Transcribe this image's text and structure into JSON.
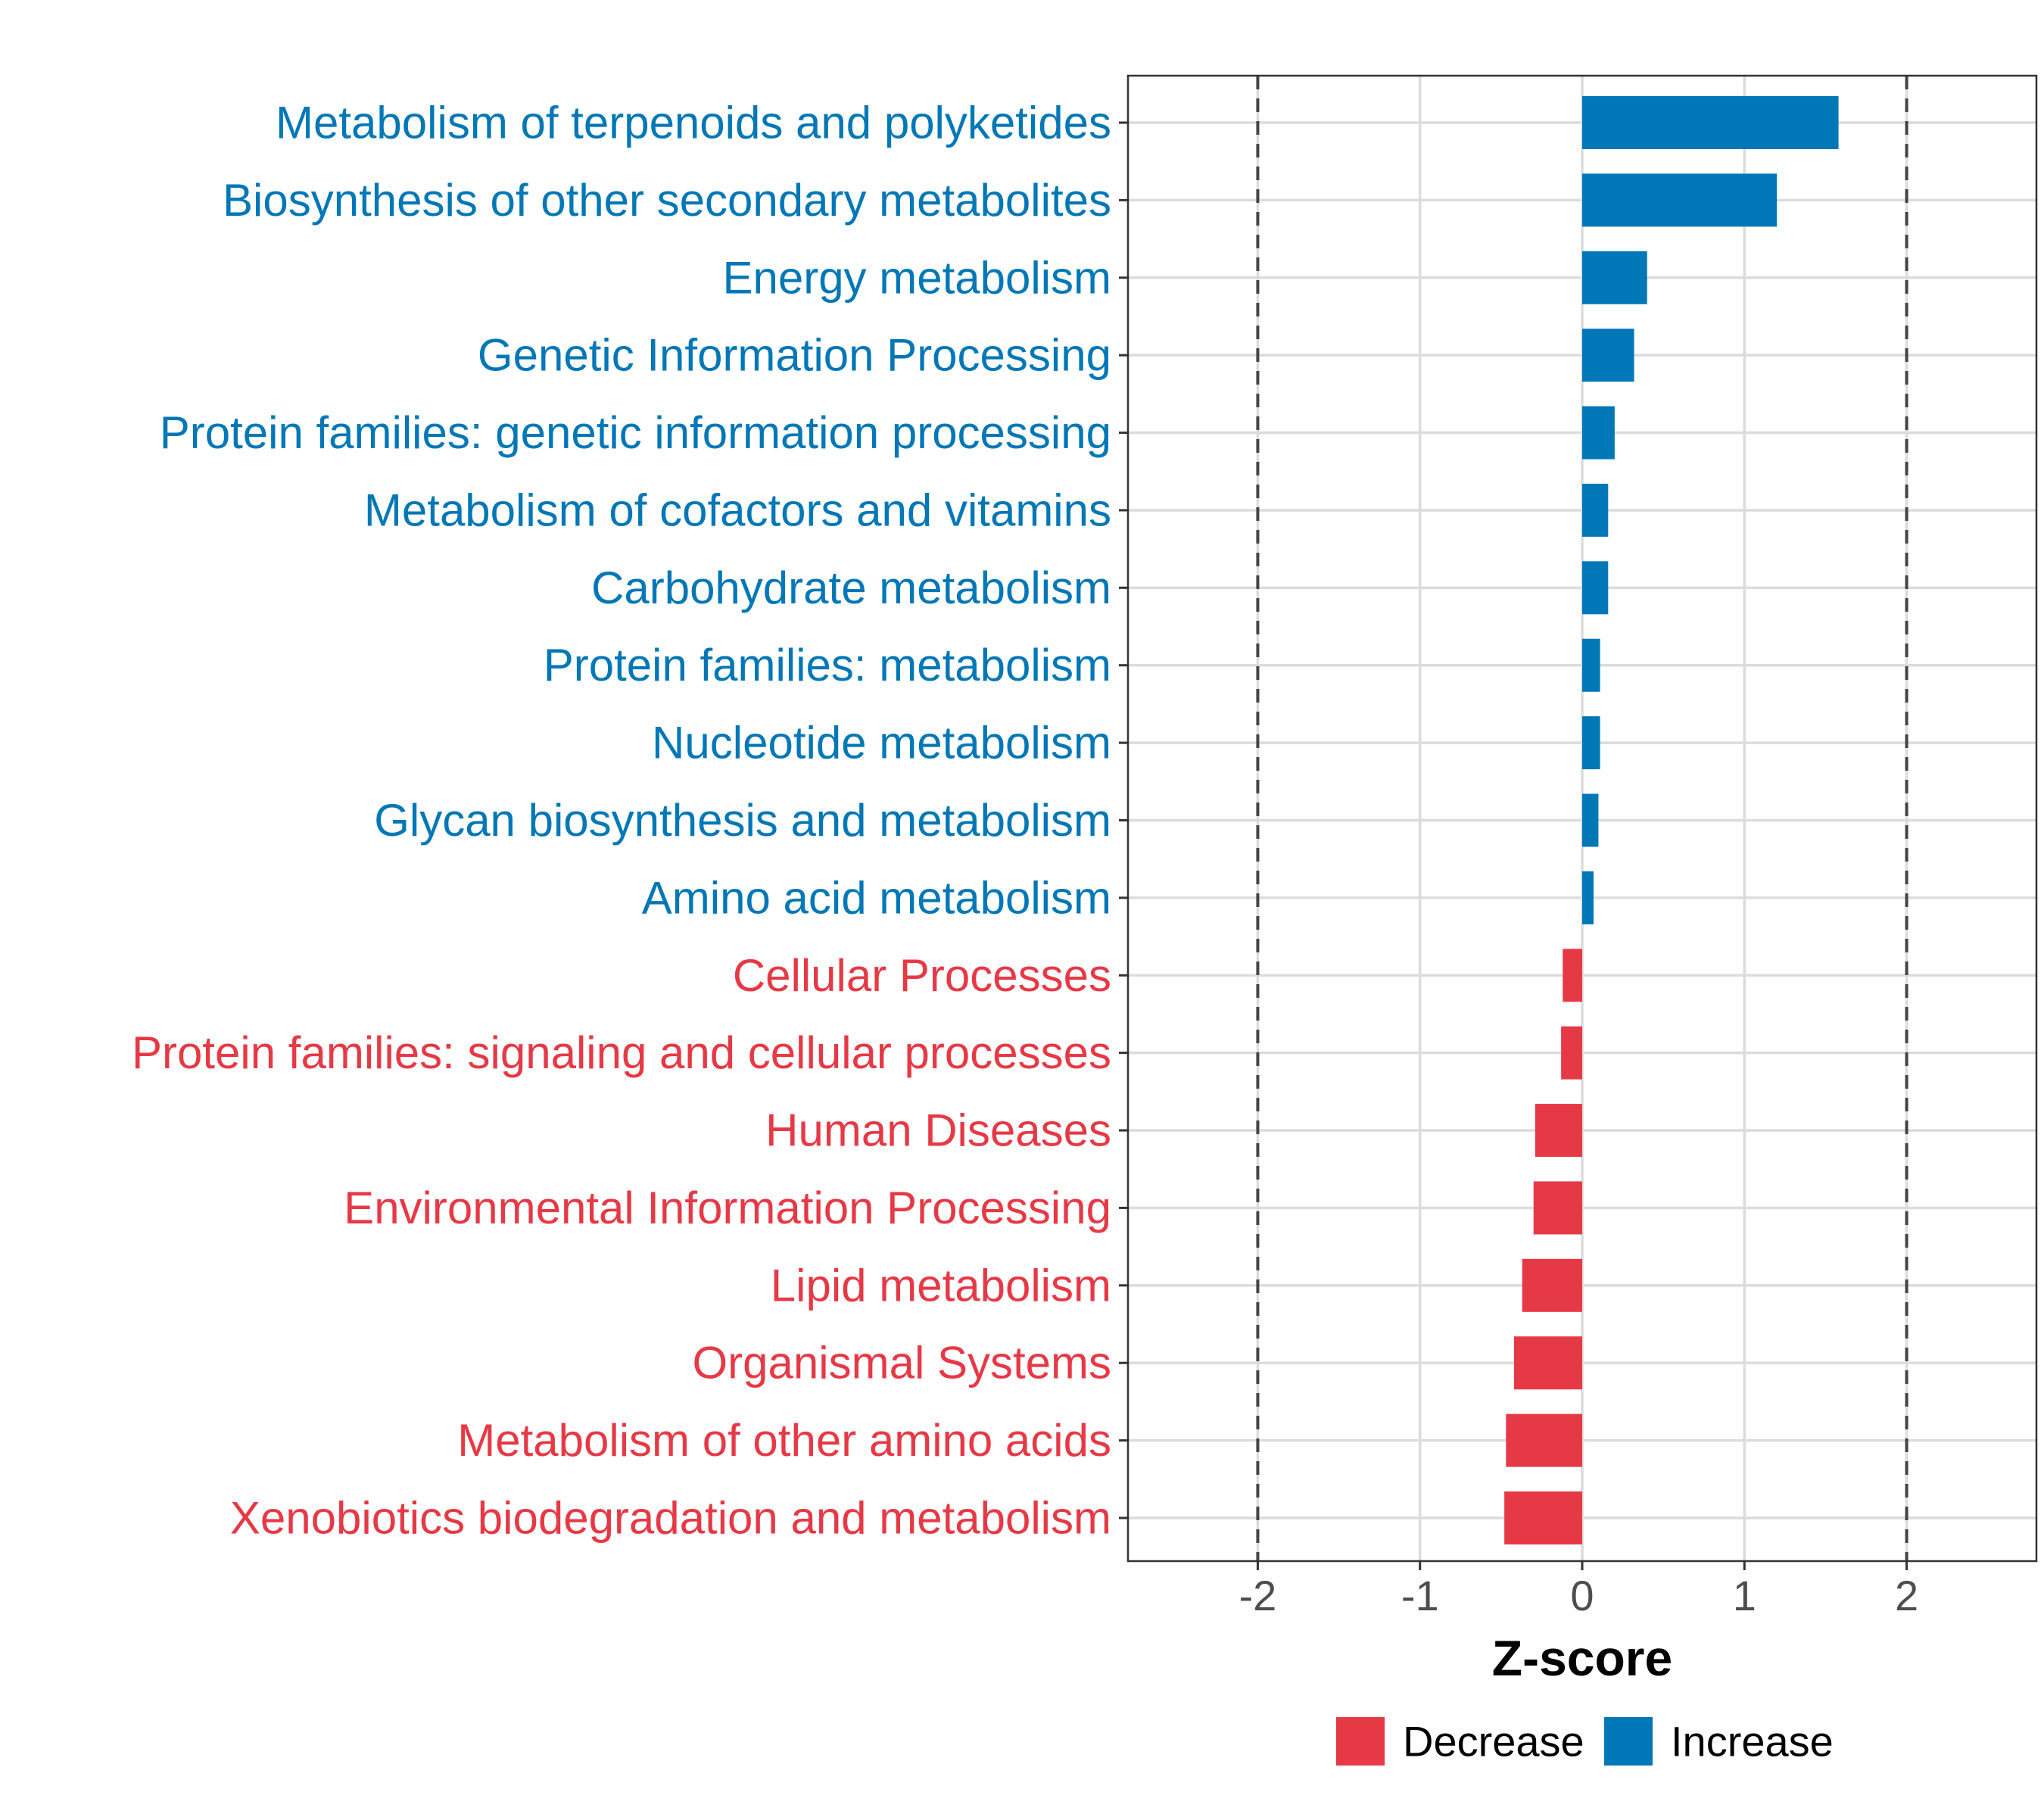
{
  "chart_data": {
    "type": "bar",
    "orientation": "horizontal",
    "xlabel": "Z-score",
    "ylabel": "",
    "xlim": [
      -2.8,
      2.8
    ],
    "x_ticks": [
      -2,
      -1,
      0,
      1,
      2
    ],
    "reference_lines": [
      -2,
      2
    ],
    "grid": true,
    "legend": {
      "placement": "bottom",
      "entries": [
        {
          "label": "Decrease",
          "color": "#E63946"
        },
        {
          "label": "Increase",
          "color": "#0077B6"
        }
      ]
    },
    "categories": [
      "Metabolism of terpenoids and polyketides",
      "Biosynthesis of other secondary metabolites",
      "Energy metabolism",
      "Genetic Information Processing",
      "Protein families: genetic information processing",
      "Metabolism of cofactors and vitamins",
      "Carbohydrate metabolism",
      "Protein families: metabolism",
      "Nucleotide metabolism",
      "Glycan biosynthesis and metabolism",
      "Amino acid metabolism",
      "Cellular Processes",
      "Protein families: signaling and cellular processes",
      "Human Diseases",
      "Environmental Information Processing",
      "Lipid metabolism",
      "Organismal Systems",
      "Metabolism of other amino acids",
      "Xenobiotics biodegradation and metabolism"
    ],
    "values": [
      1.58,
      1.2,
      0.4,
      0.32,
      0.2,
      0.16,
      0.16,
      0.11,
      0.11,
      0.1,
      0.07,
      -0.12,
      -0.13,
      -0.29,
      -0.3,
      -0.37,
      -0.42,
      -0.47,
      -0.48
    ],
    "direction": [
      "Increase",
      "Increase",
      "Increase",
      "Increase",
      "Increase",
      "Increase",
      "Increase",
      "Increase",
      "Increase",
      "Increase",
      "Increase",
      "Decrease",
      "Decrease",
      "Decrease",
      "Decrease",
      "Decrease",
      "Decrease",
      "Decrease",
      "Decrease"
    ]
  }
}
